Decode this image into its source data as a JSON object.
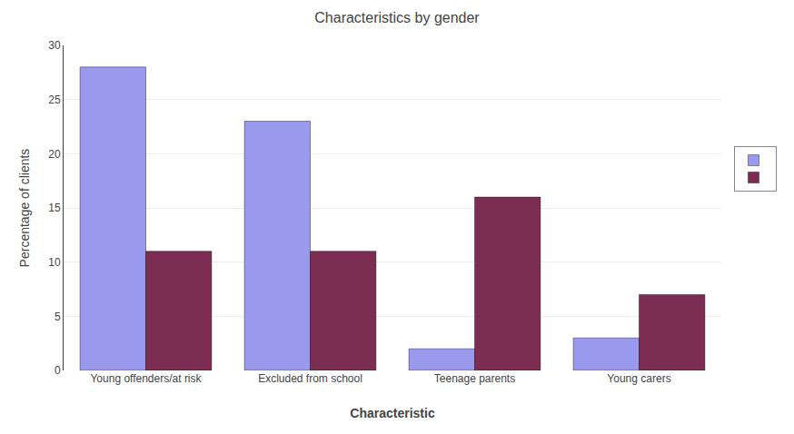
{
  "chart_data": {
    "type": "bar",
    "title": "Characteristics by gender",
    "xlabel": "Characteristic",
    "ylabel": "Percentage of clients",
    "categories": [
      "Young offenders/at risk",
      "Excluded from school",
      "Teenage parents",
      "Young carers"
    ],
    "series": [
      {
        "color": "#9999EE",
        "values": [
          28,
          23,
          2,
          3
        ]
      },
      {
        "color": "#7B2D52",
        "values": [
          11,
          11,
          16,
          7
        ]
      }
    ],
    "ylim": [
      0,
      30
    ],
    "yticks": [
      0,
      5,
      10,
      15,
      20,
      25,
      30
    ],
    "grid": true,
    "legend": "right"
  }
}
